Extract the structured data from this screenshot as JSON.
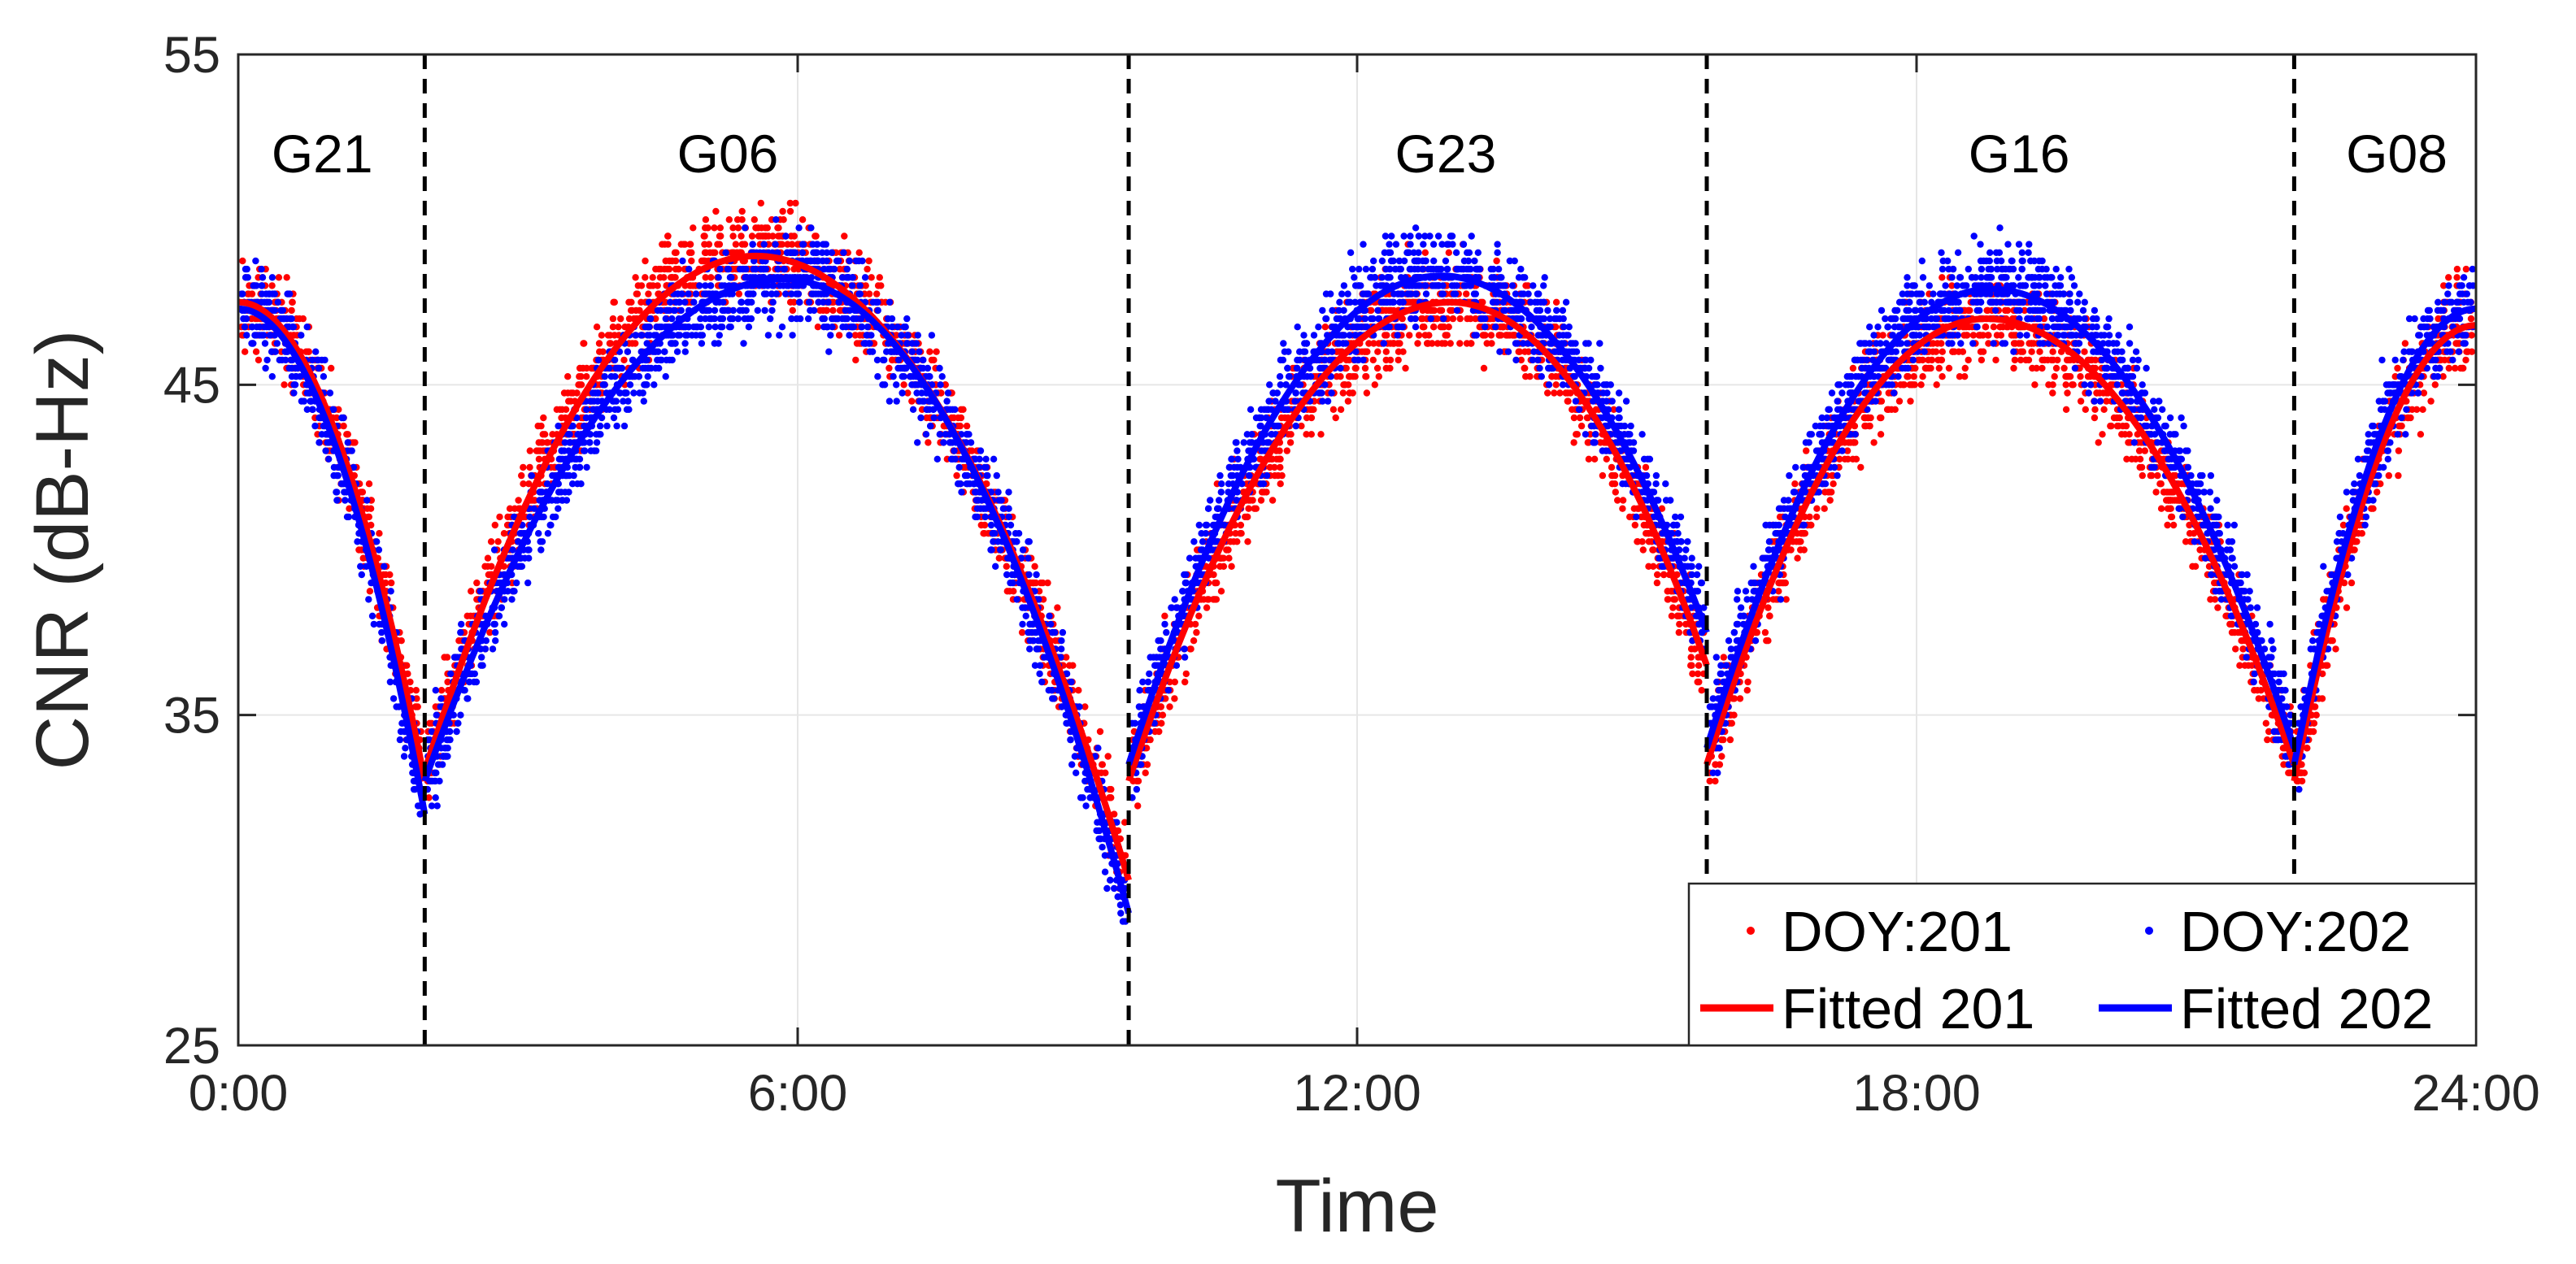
{
  "chart_data": {
    "type": "scatter",
    "xlabel": "Time",
    "ylabel": "CNR (dB-Hz)",
    "xlim": [
      0,
      24
    ],
    "ylim": [
      25,
      55
    ],
    "x_ticks": [
      0,
      6,
      12,
      18,
      24
    ],
    "x_tick_labels": [
      "0:00",
      "6:00",
      "12:00",
      "18:00",
      "24:00"
    ],
    "y_ticks": [
      25,
      35,
      45,
      55
    ],
    "y_tick_labels": [
      "25",
      "35",
      "45",
      "55"
    ],
    "grid": true,
    "legend_position": "bottom-right",
    "colors": {
      "doy201": "#ff0000",
      "doy202": "#0000ff",
      "divider": "#000000"
    },
    "dividers": [
      2.0,
      9.55,
      15.75,
      22.05
    ],
    "satellite_labels": [
      {
        "label": "G21",
        "x": 0.9
      },
      {
        "label": "G06",
        "x": 5.25
      },
      {
        "label": "G23",
        "x": 12.95
      },
      {
        "label": "G16",
        "x": 19.1
      },
      {
        "label": "G08",
        "x": 23.15
      }
    ],
    "series": [
      {
        "name": "DOY:201",
        "kind": "points"
      },
      {
        "name": "DOY:202",
        "kind": "points"
      },
      {
        "name": "Fitted 201",
        "kind": "line"
      },
      {
        "name": "Fitted 202",
        "kind": "line"
      }
    ],
    "arcs": [
      {
        "sat": "G21",
        "x_start": 0.0,
        "x_end": 2.0,
        "fit201": {
          "peak_x": 0.0,
          "peak_y": 47.5,
          "end_y": 33.0
        },
        "fit202": {
          "peak_x": 0.0,
          "peak_y": 47.3,
          "end_y": 32.0
        }
      },
      {
        "sat": "G06",
        "x_start": 2.0,
        "x_end": 9.55,
        "fit201": {
          "peak_x": 5.55,
          "peak_y": 48.9,
          "start_y": 33.3,
          "end_y": 30.0
        },
        "fit202": {
          "peak_x": 5.85,
          "peak_y": 48.2,
          "start_y": 33.0,
          "end_y": 29.0
        }
      },
      {
        "sat": "G23",
        "x_start": 9.55,
        "x_end": 15.75,
        "fit201": {
          "peak_x": 13.0,
          "peak_y": 47.5,
          "start_y": 33.0,
          "end_y": 36.5
        },
        "fit202": {
          "peak_x": 12.9,
          "peak_y": 48.3,
          "start_y": 33.5,
          "end_y": 37.5
        }
      },
      {
        "sat": "G16",
        "x_start": 15.75,
        "x_end": 22.05,
        "fit201": {
          "peak_x": 18.75,
          "peak_y": 47.0,
          "start_y": 33.5,
          "end_y": 33.5
        },
        "fit202": {
          "peak_x": 18.8,
          "peak_y": 47.9,
          "start_y": 34.0,
          "end_y": 34.0
        }
      },
      {
        "sat": "G08",
        "x_start": 22.05,
        "x_end": 24.0,
        "fit201": {
          "peak_x": 24.0,
          "peak_y": 46.8,
          "start_y": 33.0
        },
        "fit202": {
          "peak_x": 24.0,
          "peak_y": 47.3,
          "start_y": 33.5
        }
      }
    ]
  }
}
